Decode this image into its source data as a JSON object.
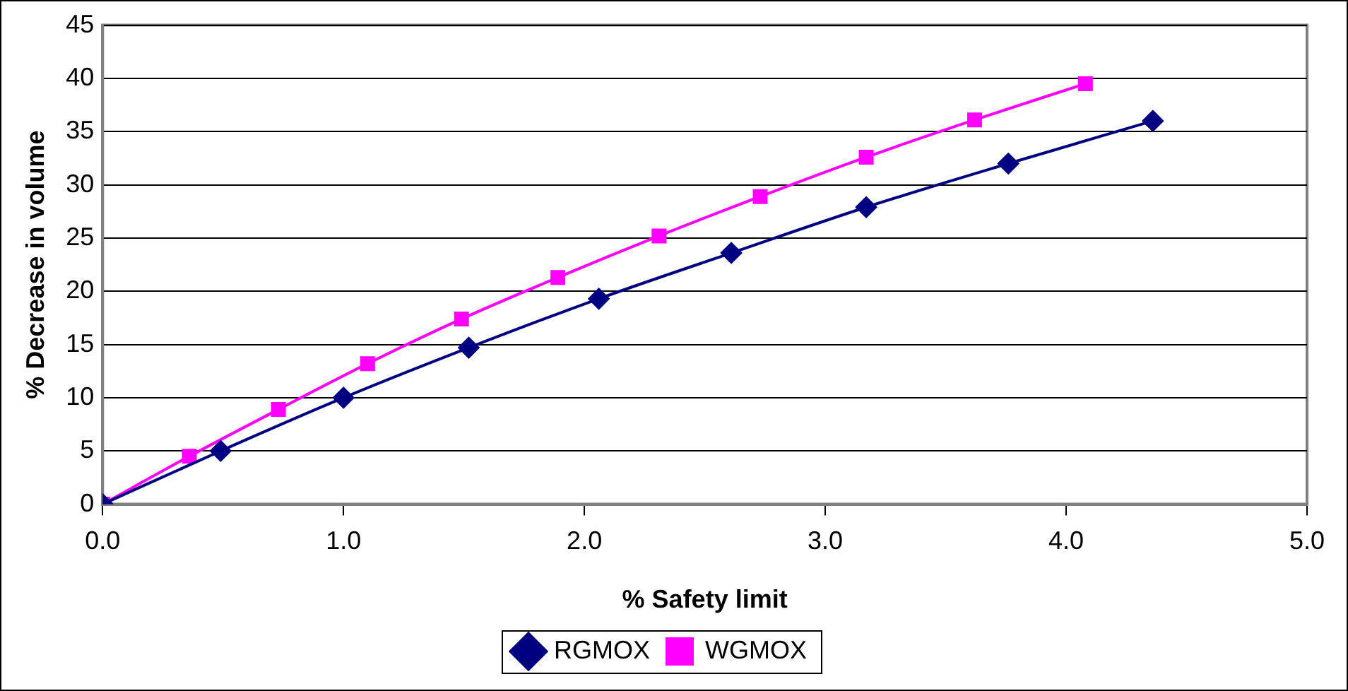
{
  "chart_data": {
    "type": "line",
    "xlabel": "% Safety limit",
    "ylabel": "% Decrease in volume",
    "xlim": [
      0,
      5
    ],
    "xticks": [
      {
        "value": 0,
        "label": "0.0"
      },
      {
        "value": 1,
        "label": "1.0"
      },
      {
        "value": 2,
        "label": "2.0"
      },
      {
        "value": 3,
        "label": "3.0"
      },
      {
        "value": 4,
        "label": "4.0"
      },
      {
        "value": 5,
        "label": "5.0"
      }
    ],
    "ylim": [
      0,
      45
    ],
    "yticks": [
      0,
      5,
      10,
      15,
      20,
      25,
      30,
      35,
      40,
      45
    ],
    "grid": "y",
    "legend": "bottom",
    "series": [
      {
        "name": "RGMOX",
        "color": "#000080",
        "marker": "diamond",
        "x": [
          0,
          0.49,
          1.0,
          1.52,
          2.06,
          2.61,
          3.17,
          3.76,
          4.36
        ],
        "values": [
          0,
          5.0,
          10.0,
          14.7,
          19.3,
          23.6,
          27.9,
          32.0,
          36.0
        ]
      },
      {
        "name": "WGMOX",
        "color": "#ff00ff",
        "marker": "square",
        "x": [
          0,
          0.36,
          0.73,
          1.1,
          1.49,
          1.89,
          2.31,
          2.73,
          3.17,
          3.62,
          4.08
        ],
        "values": [
          0,
          4.5,
          8.9,
          13.2,
          17.4,
          21.3,
          25.2,
          28.9,
          32.6,
          36.1,
          39.5
        ]
      }
    ]
  }
}
